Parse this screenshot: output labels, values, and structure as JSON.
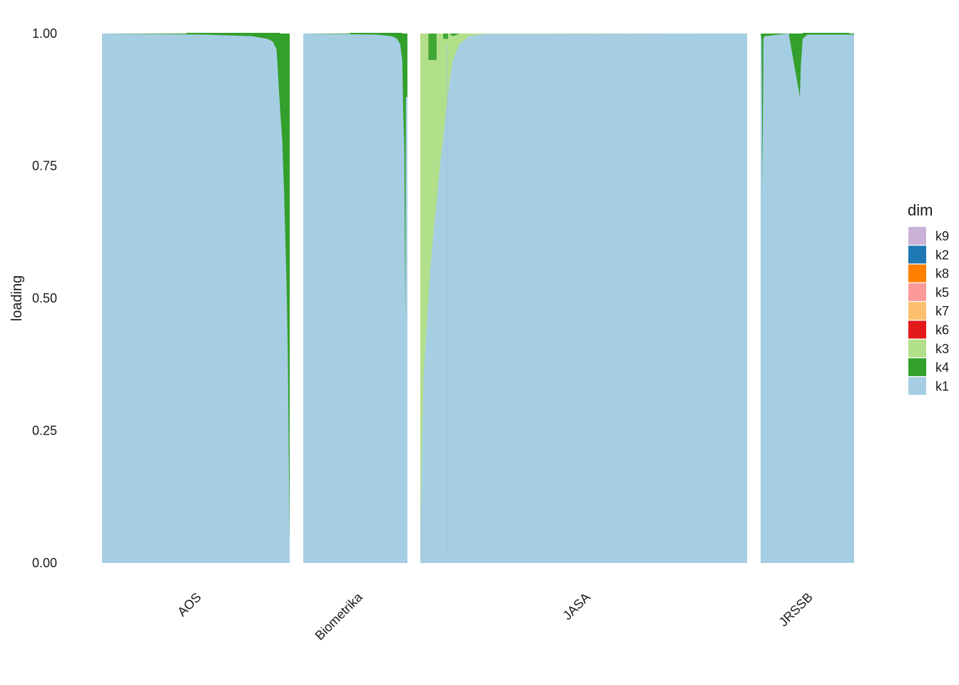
{
  "chart_data": {
    "type": "bar",
    "stacked": true,
    "facets": [
      "AOS",
      "Biometrika",
      "JASA",
      "JRSSB"
    ],
    "ylabel": "loading",
    "ylim": [
      0,
      1
    ],
    "yticks": [
      "0.00",
      "0.25",
      "0.50",
      "0.75",
      "1.00"
    ],
    "grid": false,
    "legend": {
      "title": "dim",
      "position": "right",
      "items": [
        {
          "name": "k9",
          "color": "#cab2d6"
        },
        {
          "name": "k2",
          "color": "#1f78b4"
        },
        {
          "name": "k8",
          "color": "#ff7f00"
        },
        {
          "name": "k5",
          "color": "#fb9a99"
        },
        {
          "name": "k7",
          "color": "#fdbf6f"
        },
        {
          "name": "k6",
          "color": "#e31a1c"
        },
        {
          "name": "k3",
          "color": "#b2df8a"
        },
        {
          "name": "k4",
          "color": "#33a02c"
        },
        {
          "name": "k1",
          "color": "#a6cee3"
        }
      ]
    },
    "panels": [
      {
        "name": "AOS",
        "k1_curve": [
          [
            0.0,
            1.0
          ],
          [
            0.55,
            0.998
          ],
          [
            0.8,
            0.995
          ],
          [
            0.88,
            0.99
          ],
          [
            0.91,
            0.985
          ],
          [
            0.93,
            0.97
          ],
          [
            0.95,
            0.85
          ],
          [
            0.96,
            0.8
          ],
          [
            0.97,
            0.7
          ],
          [
            0.98,
            0.57
          ],
          [
            0.985,
            0.5
          ],
          [
            0.99,
            0.39
          ],
          [
            0.993,
            0.29
          ],
          [
            0.996,
            0.17
          ],
          [
            1.0,
            0.04
          ]
        ],
        "k3_band": [],
        "k4_band": []
      },
      {
        "name": "Biometrika",
        "k1_curve": [
          [
            0.0,
            1.0
          ],
          [
            0.7,
            0.998
          ],
          [
            0.85,
            0.995
          ],
          [
            0.9,
            0.99
          ],
          [
            0.93,
            0.98
          ],
          [
            0.95,
            0.95
          ],
          [
            0.96,
            0.85
          ],
          [
            0.97,
            0.78
          ],
          [
            0.975,
            0.6
          ],
          [
            0.98,
            0.46
          ],
          [
            0.985,
            0.88
          ],
          [
            1.0,
            0.88
          ]
        ],
        "k3_band": [],
        "k4_band": []
      },
      {
        "name": "JASA",
        "k1_curve": [
          [
            0.0,
            0.04
          ],
          [
            0.005,
            0.2
          ],
          [
            0.01,
            0.35
          ],
          [
            0.02,
            0.45
          ],
          [
            0.03,
            0.55
          ],
          [
            0.04,
            0.62
          ],
          [
            0.05,
            0.68
          ],
          [
            0.06,
            0.75
          ],
          [
            0.07,
            0.8
          ],
          [
            0.08,
            0.86
          ],
          [
            0.09,
            0.91
          ],
          [
            0.1,
            0.95
          ],
          [
            0.12,
            0.98
          ],
          [
            0.15,
            0.995
          ],
          [
            0.2,
            0.999
          ],
          [
            1.0,
            1.0
          ]
        ],
        "k3_band": [
          [
            0.0,
            1.0
          ],
          [
            0.03,
            1.0
          ],
          [
            0.06,
            1.0
          ],
          [
            0.09,
            1.0
          ],
          [
            0.1,
            0.995
          ],
          [
            0.12,
            1.0
          ],
          [
            1.0,
            1.0
          ]
        ],
        "k4_band": [
          [
            0.02,
            1.0
          ],
          [
            0.05,
            1.0
          ],
          [
            0.06,
            1.0
          ],
          [
            0.08,
            1.0
          ],
          [
            0.1,
            1.0
          ],
          [
            0.12,
            1.0
          ],
          [
            1.0,
            1.0
          ]
        ]
      },
      {
        "name": "JRSSB",
        "k1_curve": [
          [
            0.0,
            1.0
          ],
          [
            0.01,
            0.99
          ],
          [
            0.02,
            0.71
          ],
          [
            0.03,
            0.99
          ],
          [
            0.04,
            0.995
          ],
          [
            0.3,
            1.0
          ],
          [
            0.42,
            0.88
          ],
          [
            0.43,
            0.94
          ],
          [
            0.45,
            0.99
          ],
          [
            0.5,
            0.998
          ],
          [
            1.0,
            0.998
          ]
        ],
        "k3_band": [],
        "k4_band": []
      }
    ]
  }
}
